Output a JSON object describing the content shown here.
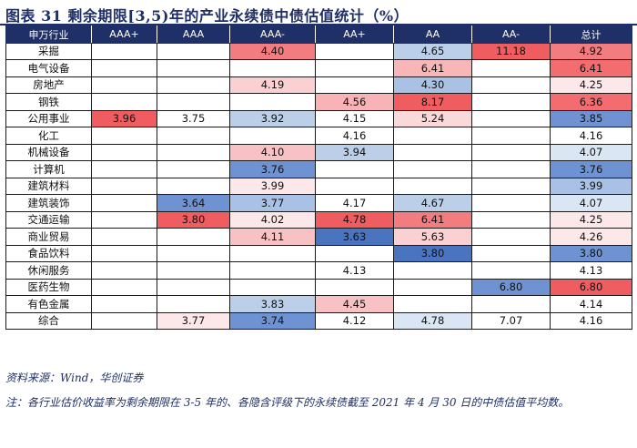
{
  "title": "图表 31  剩余期限[3,5)年的产业永续债中债估值统计（%）",
  "columns": [
    "申万行业",
    "AAA+",
    "AAA",
    "AAA-",
    "AA+",
    "AA",
    "AA-",
    "总计"
  ],
  "rows": [
    {
      "label": "采掘",
      "cells": [
        "",
        "",
        "4.40",
        "",
        "4.65",
        "11.18",
        "4.92"
      ]
    },
    {
      "label": "电气设备",
      "cells": [
        "",
        "",
        "",
        "",
        "6.41",
        "",
        "6.41"
      ]
    },
    {
      "label": "房地产",
      "cells": [
        "",
        "",
        "4.19",
        "",
        "4.30",
        "",
        "4.25"
      ]
    },
    {
      "label": "钢铁",
      "cells": [
        "",
        "",
        "",
        "4.56",
        "8.17",
        "",
        "6.36"
      ]
    },
    {
      "label": "公用事业",
      "cells": [
        "3.96",
        "3.75",
        "3.92",
        "4.15",
        "5.24",
        "",
        "3.85"
      ]
    },
    {
      "label": "化工",
      "cells": [
        "",
        "",
        "",
        "4.16",
        "",
        "",
        "4.16"
      ]
    },
    {
      "label": "机械设备",
      "cells": [
        "",
        "",
        "4.10",
        "3.94",
        "",
        "",
        "4.07"
      ]
    },
    {
      "label": "计算机",
      "cells": [
        "",
        "",
        "3.76",
        "",
        "",
        "",
        "3.76"
      ]
    },
    {
      "label": "建筑材料",
      "cells": [
        "",
        "",
        "3.99",
        "",
        "",
        "",
        "3.99"
      ]
    },
    {
      "label": "建筑装饰",
      "cells": [
        "",
        "3.64",
        "3.77",
        "4.17",
        "4.67",
        "",
        "4.07"
      ]
    },
    {
      "label": "交通运输",
      "cells": [
        "",
        "3.80",
        "4.02",
        "4.78",
        "6.41",
        "",
        "4.25"
      ]
    },
    {
      "label": "商业贸易",
      "cells": [
        "",
        "",
        "4.11",
        "3.63",
        "5.63",
        "",
        "4.26"
      ]
    },
    {
      "label": "食品饮料",
      "cells": [
        "",
        "",
        "",
        "",
        "3.80",
        "",
        "3.80"
      ]
    },
    {
      "label": "休闲服务",
      "cells": [
        "",
        "",
        "",
        "4.13",
        "",
        "",
        "4.13"
      ]
    },
    {
      "label": "医药生物",
      "cells": [
        "",
        "",
        "",
        "",
        "",
        "6.80",
        "6.80"
      ]
    },
    {
      "label": "有色金属",
      "cells": [
        "",
        "",
        "3.83",
        "4.45",
        "",
        "",
        "4.14"
      ]
    },
    {
      "label": "综合",
      "cells": [
        "",
        "3.77",
        "3.74",
        "4.12",
        "4.78",
        "7.07",
        "4.16"
      ]
    }
  ],
  "fills": [
    [
      "",
      "",
      "#f27c7f",
      "",
      "#bccfe8",
      "#f05d61",
      "#f27c7f"
    ],
    [
      "",
      "",
      "",
      "",
      "#f8b6b8",
      "",
      "#f26c70"
    ],
    [
      "",
      "",
      "#fad0d2",
      "",
      "#a9c1e4",
      "",
      "#fde8e9"
    ],
    [
      "",
      "",
      "",
      "#f8b3b6",
      "#f05d61",
      "",
      "#f26c70"
    ],
    [
      "#f05d61",
      "#ffffff",
      "#bccfe8",
      "#ffffff",
      "#fad9da",
      "",
      "#6f93d2"
    ],
    [
      "",
      "",
      "",
      "#ffffff",
      "",
      "",
      "#ffffff"
    ],
    [
      "",
      "",
      "#f8c1c3",
      "#bccfe8",
      "",
      "",
      "#dbe6f4"
    ],
    [
      "",
      "",
      "#6f93d2",
      "",
      "",
      "",
      "#6f93d2"
    ],
    [
      "",
      "",
      "#fde8e9",
      "",
      "",
      "",
      "#a9c1e4"
    ],
    [
      "",
      "#6f93d2",
      "#a9c1e4",
      "#ffffff",
      "#bccfe8",
      "",
      "#dbe6f4"
    ],
    [
      "",
      "#f05d61",
      "#fde8e9",
      "#f05d61",
      "#f27c7f",
      "",
      "#fde8e9"
    ],
    [
      "",
      "",
      "#f8c1c3",
      "#4a74c0",
      "#fad0d2",
      "",
      "#fde8e9"
    ],
    [
      "",
      "",
      "",
      "",
      "#4a74c0",
      "",
      "#6f93d2"
    ],
    [
      "",
      "",
      "",
      "#ffffff",
      "",
      "",
      "#ffffff"
    ],
    [
      "",
      "",
      "",
      "",
      "",
      "#6f93d2",
      "#f05d61"
    ],
    [
      "",
      "",
      "#bccfe8",
      "#f8c1c3",
      "",
      "",
      "#ffffff"
    ],
    [
      "",
      "#fde8e9",
      "#6f93d2",
      "#ffffff",
      "#dbe6f4",
      "#ffffff",
      "#ffffff"
    ]
  ],
  "source": "资料来源：Wind，华创证券",
  "note": "注：各行业估价收益率为剩余期限在 3-5 年的、各隐含评级下的永续债截至 2021 年 4 月 30 日的中债估值平均数。"
}
